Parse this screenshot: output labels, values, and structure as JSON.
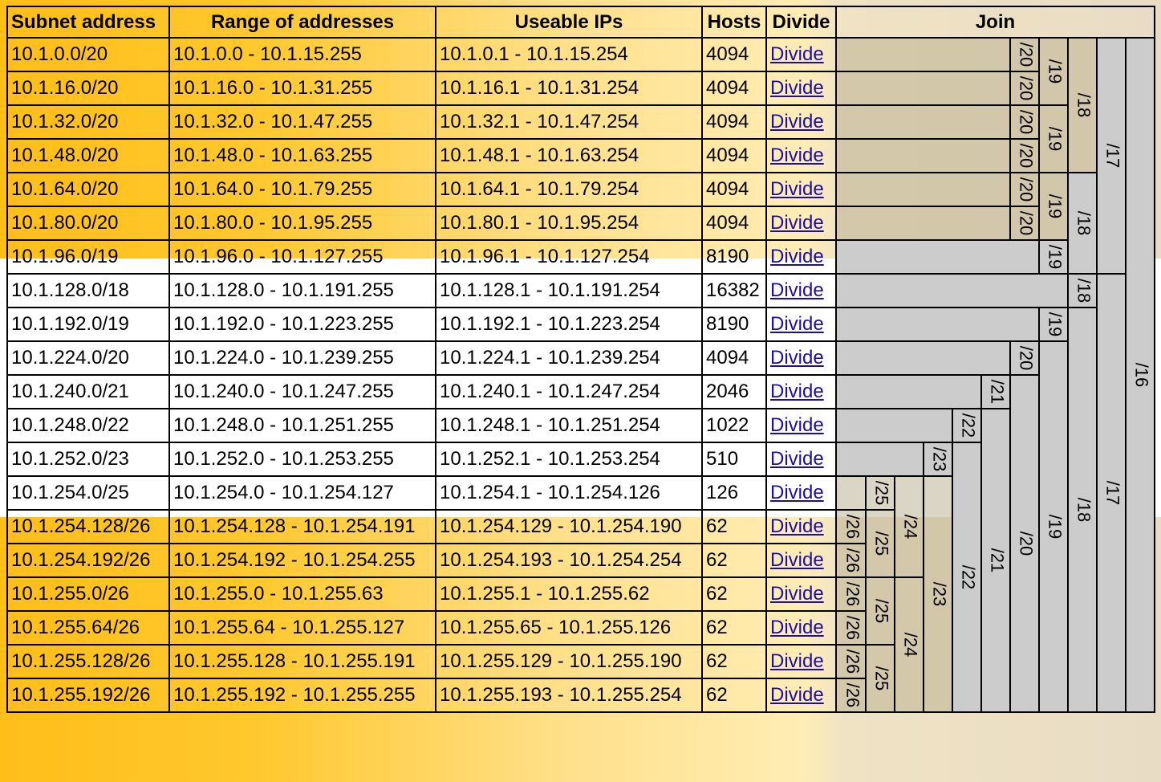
{
  "header": {
    "subnet": "Subnet address",
    "range": "Range of addresses",
    "useable": "Useable IPs",
    "hosts": "Hosts",
    "divide": "Divide",
    "join": "Join"
  },
  "rows": [
    {
      "subnet": "10.1.0.0/20",
      "range": "10.1.0.0 - 10.1.15.255",
      "useable": "10.1.0.1 - 10.1.15.254",
      "hosts": "4094",
      "divide": "Divide"
    },
    {
      "subnet": "10.1.16.0/20",
      "range": "10.1.16.0 - 10.1.31.255",
      "useable": "10.1.16.1 - 10.1.31.254",
      "hosts": "4094",
      "divide": "Divide"
    },
    {
      "subnet": "10.1.32.0/20",
      "range": "10.1.32.0 - 10.1.47.255",
      "useable": "10.1.32.1 - 10.1.47.254",
      "hosts": "4094",
      "divide": "Divide"
    },
    {
      "subnet": "10.1.48.0/20",
      "range": "10.1.48.0 - 10.1.63.255",
      "useable": "10.1.48.1 - 10.1.63.254",
      "hosts": "4094",
      "divide": "Divide"
    },
    {
      "subnet": "10.1.64.0/20",
      "range": "10.1.64.0 - 10.1.79.255",
      "useable": "10.1.64.1 - 10.1.79.254",
      "hosts": "4094",
      "divide": "Divide"
    },
    {
      "subnet": "10.1.80.0/20",
      "range": "10.1.80.0 - 10.1.95.255",
      "useable": "10.1.80.1 - 10.1.95.254",
      "hosts": "4094",
      "divide": "Divide"
    },
    {
      "subnet": "10.1.96.0/19",
      "range": "10.1.96.0 - 10.1.127.255",
      "useable": "10.1.96.1 - 10.1.127.254",
      "hosts": "8190",
      "divide": "Divide"
    },
    {
      "subnet": "10.1.128.0/18",
      "range": "10.1.128.0 - 10.1.191.255",
      "useable": "10.1.128.1 - 10.1.191.254",
      "hosts": "16382",
      "divide": "Divide"
    },
    {
      "subnet": "10.1.192.0/19",
      "range": "10.1.192.0 - 10.1.223.255",
      "useable": "10.1.192.1 - 10.1.223.254",
      "hosts": "8190",
      "divide": "Divide"
    },
    {
      "subnet": "10.1.224.0/20",
      "range": "10.1.224.0 - 10.1.239.255",
      "useable": "10.1.224.1 - 10.1.239.254",
      "hosts": "4094",
      "divide": "Divide"
    },
    {
      "subnet": "10.1.240.0/21",
      "range": "10.1.240.0 - 10.1.247.255",
      "useable": "10.1.240.1 - 10.1.247.254",
      "hosts": "2046",
      "divide": "Divide"
    },
    {
      "subnet": "10.1.248.0/22",
      "range": "10.1.248.0 - 10.1.251.255",
      "useable": "10.1.248.1 - 10.1.251.254",
      "hosts": "1022",
      "divide": "Divide"
    },
    {
      "subnet": "10.1.252.0/23",
      "range": "10.1.252.0 - 10.1.253.255",
      "useable": "10.1.252.1 - 10.1.253.254",
      "hosts": "510",
      "divide": "Divide"
    },
    {
      "subnet": "10.1.254.0/25",
      "range": "10.1.254.0 - 10.1.254.127",
      "useable": "10.1.254.1 - 10.1.254.126",
      "hosts": "126",
      "divide": "Divide"
    },
    {
      "subnet": "10.1.254.128/26",
      "range": "10.1.254.128 - 10.1.254.191",
      "useable": "10.1.254.129 - 10.1.254.190",
      "hosts": "62",
      "divide": "Divide"
    },
    {
      "subnet": "10.1.254.192/26",
      "range": "10.1.254.192 - 10.1.254.255",
      "useable": "10.1.254.193 - 10.1.254.254",
      "hosts": "62",
      "divide": "Divide"
    },
    {
      "subnet": "10.1.255.0/26",
      "range": "10.1.255.0 - 10.1.255.63",
      "useable": "10.1.255.1 - 10.1.255.62",
      "hosts": "62",
      "divide": "Divide"
    },
    {
      "subnet": "10.1.255.64/26",
      "range": "10.1.255.64 - 10.1.255.127",
      "useable": "10.1.255.65 - 10.1.255.126",
      "hosts": "62",
      "divide": "Divide"
    },
    {
      "subnet": "10.1.255.128/26",
      "range": "10.1.255.128 - 10.1.255.191",
      "useable": "10.1.255.129 - 10.1.255.190",
      "hosts": "62",
      "divide": "Divide"
    },
    {
      "subnet": "10.1.255.192/26",
      "range": "10.1.255.192 - 10.1.255.255",
      "useable": "10.1.255.193 - 10.1.255.254",
      "hosts": "62",
      "divide": "Divide"
    }
  ],
  "join_cells": [
    {
      "row": 0,
      "rowspan": 1,
      "label": "/20",
      "shade": "tan"
    },
    {
      "row": 1,
      "rowspan": 1,
      "label": "/20",
      "shade": "tan"
    },
    {
      "row": 2,
      "rowspan": 1,
      "label": "/20",
      "shade": "tan"
    },
    {
      "row": 3,
      "rowspan": 1,
      "label": "/20",
      "shade": "tan"
    },
    {
      "row": 4,
      "rowspan": 1,
      "label": "/20",
      "shade": "tan"
    },
    {
      "row": 5,
      "rowspan": 1,
      "label": "/20",
      "shade": "tan"
    },
    {
      "row": 0,
      "rowspan": 2,
      "label": "/19",
      "shade": "tan"
    },
    {
      "row": 2,
      "rowspan": 2,
      "label": "/19",
      "shade": "tan"
    },
    {
      "row": 4,
      "rowspan": 2,
      "label": "/19",
      "shade": "tan"
    },
    {
      "row": 0,
      "rowspan": 4,
      "label": "/18",
      "shade": "tan"
    },
    {
      "row": 4,
      "rowspan": 3,
      "label": "/18",
      "shade": "gray"
    },
    {
      "row": 0,
      "rowspan": 7,
      "label": "/17",
      "shade": "gray"
    },
    {
      "row": 0,
      "rowspan": 20,
      "label": "/16",
      "shade": "gray"
    },
    {
      "row": 6,
      "rowspan": 1,
      "label": "/19",
      "shade": "gray"
    },
    {
      "row": 7,
      "rowspan": 1,
      "label": "/18",
      "shade": "gray"
    },
    {
      "row": 7,
      "rowspan": 13,
      "label": "/17",
      "shade": "gray"
    },
    {
      "row": 8,
      "rowspan": 1,
      "label": "/19",
      "shade": "gray"
    },
    {
      "row": 8,
      "rowspan": 12,
      "label": "/18",
      "shade": "gray"
    },
    {
      "row": 9,
      "rowspan": 1,
      "label": "/20",
      "shade": "gray"
    },
    {
      "row": 9,
      "rowspan": 11,
      "label": "/19",
      "shade": "gray"
    },
    {
      "row": 10,
      "rowspan": 1,
      "label": "/21",
      "shade": "gray"
    },
    {
      "row": 10,
      "rowspan": 10,
      "label": "/20",
      "shade": "gray"
    },
    {
      "row": 11,
      "rowspan": 1,
      "label": "/22",
      "shade": "gray"
    },
    {
      "row": 11,
      "rowspan": 9,
      "label": "/21",
      "shade": "gray"
    },
    {
      "row": 12,
      "rowspan": 1,
      "label": "/23",
      "shade": "gray"
    },
    {
      "row": 12,
      "rowspan": 8,
      "label": "/22",
      "shade": "gray"
    },
    {
      "row": 13,
      "rowspan": 1,
      "label": "/25",
      "shade": "tan"
    },
    {
      "row": 13,
      "rowspan": 3,
      "label": "/24",
      "shade": "tan"
    },
    {
      "row": 13,
      "rowspan": 7,
      "label": "/23",
      "shade": "tan"
    },
    {
      "row": 14,
      "rowspan": 1,
      "label": "/26",
      "shade": "tan"
    },
    {
      "row": 15,
      "rowspan": 1,
      "label": "/26",
      "shade": "tan"
    },
    {
      "row": 14,
      "rowspan": 2,
      "label": "/25",
      "shade": "tan"
    },
    {
      "row": 16,
      "rowspan": 1,
      "label": "/26",
      "shade": "tan"
    },
    {
      "row": 17,
      "rowspan": 1,
      "label": "/26",
      "shade": "tan"
    },
    {
      "row": 16,
      "rowspan": 2,
      "label": "/25",
      "shade": "tan"
    },
    {
      "row": 16,
      "rowspan": 4,
      "label": "/24",
      "shade": "tan"
    },
    {
      "row": 18,
      "rowspan": 1,
      "label": "/26",
      "shade": "tan"
    },
    {
      "row": 19,
      "rowspan": 1,
      "label": "/26",
      "shade": "tan"
    },
    {
      "row": 18,
      "rowspan": 2,
      "label": "/25",
      "shade": "tan"
    }
  ],
  "colors": {
    "highlight_start": "#ffbe1a",
    "highlight_end": "#e8dcc5",
    "join_gray": "#cccccc",
    "link": "#1a0dab"
  }
}
